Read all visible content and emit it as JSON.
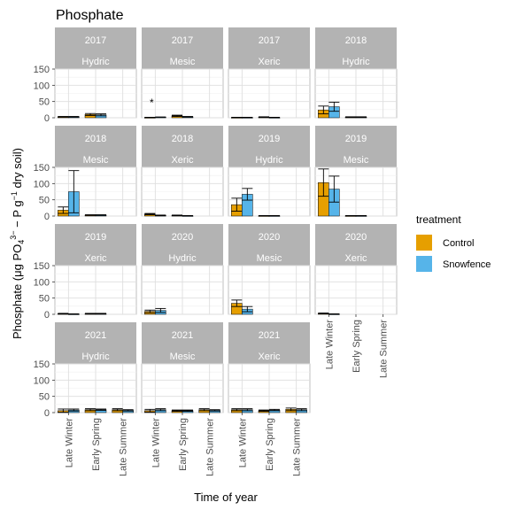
{
  "chart_data": {
    "type": "bar",
    "title": "Phosphate",
    "xlabel": "Time of year",
    "ylabel": {
      "pre": "Phosphate (μg PO",
      "sub1": "4",
      "sup1": "3−",
      "mid": " − P g",
      "sup2": "−1",
      "post": " dry soil)"
    },
    "categories": [
      "Late Winter",
      "Early Spring",
      "Late Summer"
    ],
    "ylim": [
      0,
      150
    ],
    "yticks": [
      0,
      50,
      100,
      150
    ],
    "grid": true,
    "legend": {
      "title": "treatment",
      "position": "right",
      "entries": [
        {
          "name": "Control",
          "color": "#E69F00"
        },
        {
          "name": "Snowfence",
          "color": "#56B4E9"
        }
      ]
    },
    "panels": [
      {
        "year": "2017",
        "site": "Hydric",
        "control": [
          3,
          10,
          null
        ],
        "control_err": [
          1,
          3,
          null
        ],
        "snowfence": [
          3,
          9,
          null
        ],
        "snowfence_err": [
          1,
          3,
          null
        ]
      },
      {
        "year": "2017",
        "site": "Mesic",
        "control": [
          1,
          6,
          null
        ],
        "control_err": [
          0.5,
          2,
          null
        ],
        "snowfence": [
          2,
          3,
          null
        ],
        "snowfence_err": [
          0.5,
          1,
          null
        ],
        "annotation": {
          "category": "Late Winter",
          "text": "*"
        }
      },
      {
        "year": "2017",
        "site": "Xeric",
        "control": [
          1,
          2,
          null
        ],
        "control_err": [
          0.5,
          1,
          null
        ],
        "snowfence": [
          1,
          1,
          null
        ],
        "snowfence_err": [
          0.5,
          0.5,
          null
        ]
      },
      {
        "year": "2018",
        "site": "Hydric",
        "control": [
          24,
          2,
          null
        ],
        "control_err": [
          12,
          1,
          null
        ],
        "snowfence": [
          34,
          2,
          null
        ],
        "snowfence_err": [
          14,
          1,
          null
        ]
      },
      {
        "year": "2018",
        "site": "Mesic",
        "control": [
          18,
          3,
          null
        ],
        "control_err": [
          10,
          1,
          null
        ],
        "snowfence": [
          75,
          3,
          null
        ],
        "snowfence_err": [
          65,
          1,
          null
        ]
      },
      {
        "year": "2018",
        "site": "Xeric",
        "control": [
          6,
          2,
          null
        ],
        "control_err": [
          2,
          1,
          null
        ],
        "snowfence": [
          2,
          1,
          null
        ],
        "snowfence_err": [
          1,
          0.5,
          null
        ]
      },
      {
        "year": "2019",
        "site": "Hydric",
        "control": [
          35,
          1,
          null
        ],
        "control_err": [
          20,
          0.5,
          null
        ],
        "snowfence": [
          67,
          1,
          null
        ],
        "snowfence_err": [
          18,
          0.5,
          null
        ]
      },
      {
        "year": "2019",
        "site": "Mesic",
        "control": [
          103,
          1,
          null
        ],
        "control_err": [
          42,
          0.5,
          null
        ],
        "snowfence": [
          83,
          1,
          null
        ],
        "snowfence_err": [
          40,
          0.5,
          null
        ]
      },
      {
        "year": "2019",
        "site": "Xeric",
        "control": [
          2,
          2,
          null
        ],
        "control_err": [
          1,
          1,
          null
        ],
        "snowfence": [
          1,
          2,
          null
        ],
        "snowfence_err": [
          0.5,
          1,
          null
        ]
      },
      {
        "year": "2020",
        "site": "Hydric",
        "control": [
          9,
          null,
          null
        ],
        "control_err": [
          4,
          null,
          null
        ],
        "snowfence": [
          12,
          null,
          null
        ],
        "snowfence_err": [
          6,
          null,
          null
        ]
      },
      {
        "year": "2020",
        "site": "Mesic",
        "control": [
          34,
          null,
          null
        ],
        "control_err": [
          10,
          null,
          null
        ],
        "snowfence": [
          16,
          null,
          null
        ],
        "snowfence_err": [
          8,
          null,
          null
        ]
      },
      {
        "year": "2020",
        "site": "Xeric",
        "control": [
          3,
          null,
          null
        ],
        "control_err": [
          1,
          null,
          null
        ],
        "snowfence": [
          1,
          null,
          null
        ],
        "snowfence_err": [
          0.5,
          null,
          null
        ]
      },
      {
        "year": "2021",
        "site": "Hydric",
        "control": [
          6,
          9,
          9
        ],
        "control_err": [
          5,
          3,
          3
        ],
        "snowfence": [
          8,
          9,
          7
        ],
        "snowfence_err": [
          3,
          2,
          2
        ]
      },
      {
        "year": "2021",
        "site": "Mesic",
        "control": [
          6,
          6,
          9
        ],
        "control_err": [
          4,
          2,
          3
        ],
        "snowfence": [
          9,
          6,
          7
        ],
        "snowfence_err": [
          3,
          2,
          2
        ]
      },
      {
        "year": "2021",
        "site": "Xeric",
        "control": [
          9,
          6,
          10
        ],
        "control_err": [
          3,
          2,
          4
        ],
        "snowfence": [
          9,
          8,
          9
        ],
        "snowfence_err": [
          3,
          2,
          3
        ]
      }
    ]
  }
}
